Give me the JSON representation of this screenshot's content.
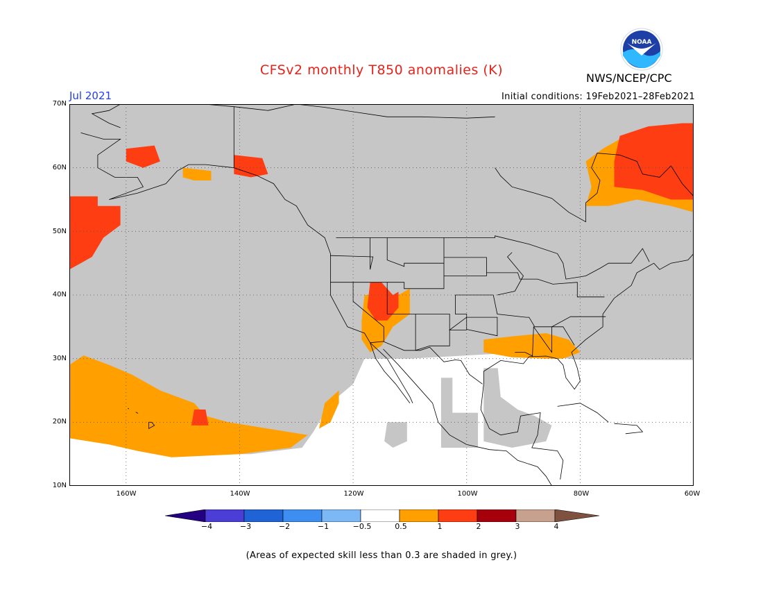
{
  "header": {
    "title": "CFSv2 monthly T850 anomalies (K)",
    "agency": "NWS/NCEP/CPC",
    "logo_text": "NOAA",
    "month": "Jul 2021",
    "initial_conditions": "Initial conditions: 19Feb2021–28Feb2021"
  },
  "map": {
    "lon_range": [
      -170,
      -60
    ],
    "lat_range": [
      10,
      70
    ],
    "lat_labels": [
      "70N",
      "60N",
      "50N",
      "40N",
      "30N",
      "20N",
      "10N"
    ],
    "lon_labels": [
      "160W",
      "140W",
      "120W",
      "100W",
      "80W",
      "60W"
    ],
    "grey_color": "#c6c6c6"
  },
  "colorbar": {
    "labels": [
      "−4",
      "−3",
      "−2",
      "−1",
      "−0.5",
      "0.5",
      "1",
      "2",
      "3",
      "4"
    ],
    "colors": [
      "#240082",
      "#4b3ed6",
      "#1f63d6",
      "#3d8ef0",
      "#7cb8f5",
      "#ffffff",
      "#ff9f00",
      "#ff3d12",
      "#a6000d",
      "#c8a08e",
      "#7f5240"
    ]
  },
  "footnote": "(Areas of expected skill less than 0.3 are shaded in grey.)"
}
